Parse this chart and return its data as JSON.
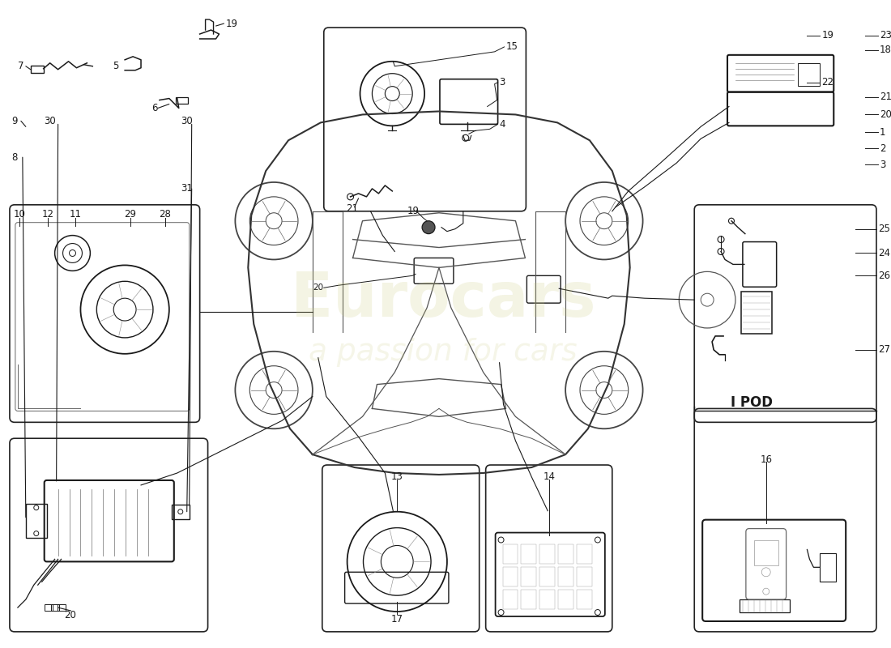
{
  "bg_color": "#ffffff",
  "line_color": "#1a1a1a",
  "watermark1": "Eurocars",
  "watermark2": "a passion for cars",
  "ipod_label": "I POD",
  "figsize": [
    11.0,
    8.0
  ],
  "dpi": 100
}
